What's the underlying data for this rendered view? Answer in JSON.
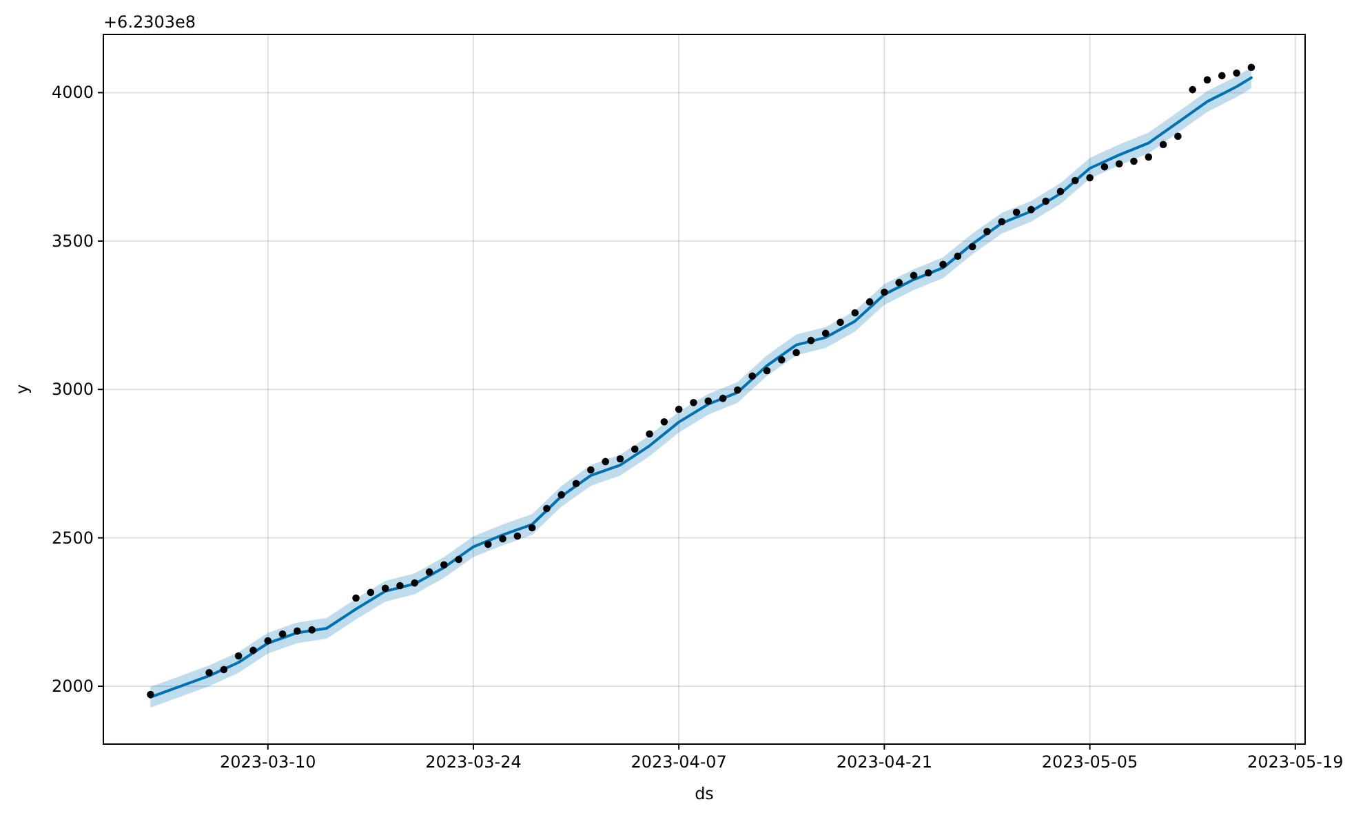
{
  "chart_data": {
    "type": "line",
    "xlabel": "ds",
    "ylabel": "y",
    "annotations": [
      "+6.2303e8"
    ],
    "xlim": [
      "2023-02-26T19:00",
      "2023-05-19T16:00"
    ],
    "ylim": [
      1805,
      4196
    ],
    "xticks": [
      "2023-03-10",
      "2023-03-24",
      "2023-04-07",
      "2023-04-21",
      "2023-05-05",
      "2023-05-19"
    ],
    "yticks": [
      2000,
      2500,
      3000,
      3500,
      4000
    ],
    "grid": true,
    "series": [
      {
        "color": "#0072b2",
        "line_style": "solid",
        "marker": "none",
        "x": [
          "2023-03-02",
          "2023-03-06",
          "2023-03-08",
          "2023-03-10",
          "2023-03-12",
          "2023-03-14",
          "2023-03-16",
          "2023-03-18",
          "2023-03-20",
          "2023-03-22",
          "2023-03-24",
          "2023-03-26",
          "2023-03-28",
          "2023-03-30",
          "2023-04-01",
          "2023-04-03",
          "2023-04-05",
          "2023-04-07",
          "2023-04-09",
          "2023-04-11",
          "2023-04-13",
          "2023-04-15",
          "2023-04-17",
          "2023-04-19",
          "2023-04-21",
          "2023-04-23",
          "2023-04-25",
          "2023-04-27",
          "2023-04-29",
          "2023-05-01",
          "2023-05-03",
          "2023-05-05",
          "2023-05-07",
          "2023-05-09",
          "2023-05-11",
          "2023-05-13",
          "2023-05-15",
          "2023-05-16"
        ],
        "values": [
          1963,
          2035,
          2080,
          2145,
          2180,
          2195,
          2260,
          2320,
          2345,
          2400,
          2470,
          2510,
          2545,
          2640,
          2710,
          2745,
          2810,
          2890,
          2950,
          2990,
          3080,
          3150,
          3175,
          3230,
          3320,
          3370,
          3410,
          3490,
          3560,
          3600,
          3660,
          3745,
          3790,
          3830,
          3900,
          3970,
          4020,
          4050
        ],
        "lower": [
          1928,
          2000,
          2045,
          2110,
          2145,
          2160,
          2225,
          2285,
          2310,
          2365,
          2435,
          2475,
          2510,
          2605,
          2675,
          2710,
          2775,
          2855,
          2915,
          2955,
          3045,
          3115,
          3140,
          3195,
          3285,
          3335,
          3375,
          3455,
          3525,
          3565,
          3625,
          3710,
          3755,
          3795,
          3865,
          3935,
          3985,
          4015
        ],
        "upper": [
          1998,
          2070,
          2115,
          2180,
          2215,
          2230,
          2295,
          2355,
          2380,
          2435,
          2505,
          2545,
          2580,
          2675,
          2745,
          2780,
          2845,
          2925,
          2985,
          3025,
          3115,
          3185,
          3210,
          3265,
          3355,
          3405,
          3445,
          3525,
          3595,
          3635,
          3695,
          3780,
          3825,
          3865,
          3935,
          4005,
          4055,
          4085
        ]
      },
      {
        "type": "scatter",
        "color": "#000000",
        "marker": "circle",
        "x": [
          "2023-03-02",
          "2023-03-06",
          "2023-03-07",
          "2023-03-08",
          "2023-03-09",
          "2023-03-10",
          "2023-03-11",
          "2023-03-12",
          "2023-03-13",
          "2023-03-16",
          "2023-03-17",
          "2023-03-18",
          "2023-03-19",
          "2023-03-20",
          "2023-03-21",
          "2023-03-22",
          "2023-03-23",
          "2023-03-25",
          "2023-03-26",
          "2023-03-27",
          "2023-03-28",
          "2023-03-29",
          "2023-03-30",
          "2023-03-31",
          "2023-04-01",
          "2023-04-02",
          "2023-04-03",
          "2023-04-04",
          "2023-04-05",
          "2023-04-06",
          "2023-04-07",
          "2023-04-08",
          "2023-04-09",
          "2023-04-10",
          "2023-04-11",
          "2023-04-12",
          "2023-04-13",
          "2023-04-14",
          "2023-04-15",
          "2023-04-16",
          "2023-04-17",
          "2023-04-18",
          "2023-04-19",
          "2023-04-20",
          "2023-04-21",
          "2023-04-22",
          "2023-04-23",
          "2023-04-24",
          "2023-04-25",
          "2023-04-26",
          "2023-04-27",
          "2023-04-28",
          "2023-04-29",
          "2023-04-30",
          "2023-05-01",
          "2023-05-02",
          "2023-05-03",
          "2023-05-04",
          "2023-05-05",
          "2023-05-06",
          "2023-05-07",
          "2023-05-08",
          "2023-05-09",
          "2023-05-10",
          "2023-05-11",
          "2023-05-12",
          "2023-05-13",
          "2023-05-14",
          "2023-05-15",
          "2023-05-16"
        ],
        "values": [
          1972,
          2046,
          2056,
          2102,
          2121,
          2153,
          2176,
          2186,
          2190,
          2297,
          2316,
          2330,
          2339,
          2348,
          2385,
          2409,
          2427,
          2478,
          2497,
          2506,
          2534,
          2599,
          2645,
          2683,
          2729,
          2757,
          2766,
          2799,
          2850,
          2891,
          2933,
          2956,
          2961,
          2970,
          2998,
          3045,
          3063,
          3100,
          3124,
          3165,
          3189,
          3226,
          3258,
          3295,
          3328,
          3360,
          3384,
          3393,
          3421,
          3449,
          3481,
          3532,
          3565,
          3597,
          3606,
          3634,
          3667,
          3704,
          3713,
          3750,
          3760,
          3769,
          3783,
          3825,
          3853,
          4010,
          4043,
          4057,
          4066,
          4085
        ]
      }
    ]
  }
}
